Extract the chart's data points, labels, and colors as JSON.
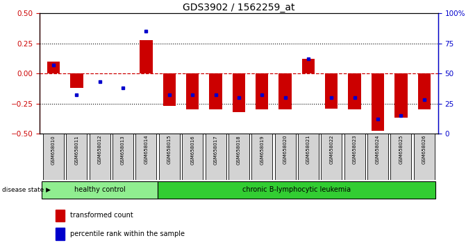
{
  "title": "GDS3902 / 1562259_at",
  "samples": [
    "GSM658010",
    "GSM658011",
    "GSM658012",
    "GSM658013",
    "GSM658014",
    "GSM658015",
    "GSM658016",
    "GSM658017",
    "GSM658018",
    "GSM658019",
    "GSM658020",
    "GSM658021",
    "GSM658022",
    "GSM658023",
    "GSM658024",
    "GSM658025",
    "GSM658026"
  ],
  "red_values": [
    0.1,
    -0.12,
    0.0,
    0.0,
    0.28,
    -0.27,
    -0.3,
    -0.3,
    -0.32,
    -0.3,
    -0.3,
    0.12,
    -0.29,
    -0.3,
    -0.48,
    -0.37,
    -0.3
  ],
  "blue_values": [
    57,
    32,
    43,
    38,
    85,
    32,
    32,
    32,
    30,
    32,
    30,
    62,
    30,
    30,
    12,
    15,
    28
  ],
  "healthy_count": 5,
  "groups": [
    "healthy control",
    "chronic B-lymphocytic leukemia"
  ],
  "healthy_color": "#90EE90",
  "chronic_color": "#32CD32",
  "ylim_left": [
    -0.5,
    0.5
  ],
  "ylim_right": [
    0,
    100
  ],
  "yticks_left": [
    -0.5,
    -0.25,
    0.0,
    0.25,
    0.5
  ],
  "yticks_right": [
    0,
    25,
    50,
    75,
    100
  ],
  "red_color": "#cc0000",
  "blue_color": "#0000cc",
  "bar_width": 0.55,
  "legend_labels": [
    "transformed count",
    "percentile rank within the sample"
  ],
  "disease_state_label": "disease state",
  "background_color": "#ffffff"
}
